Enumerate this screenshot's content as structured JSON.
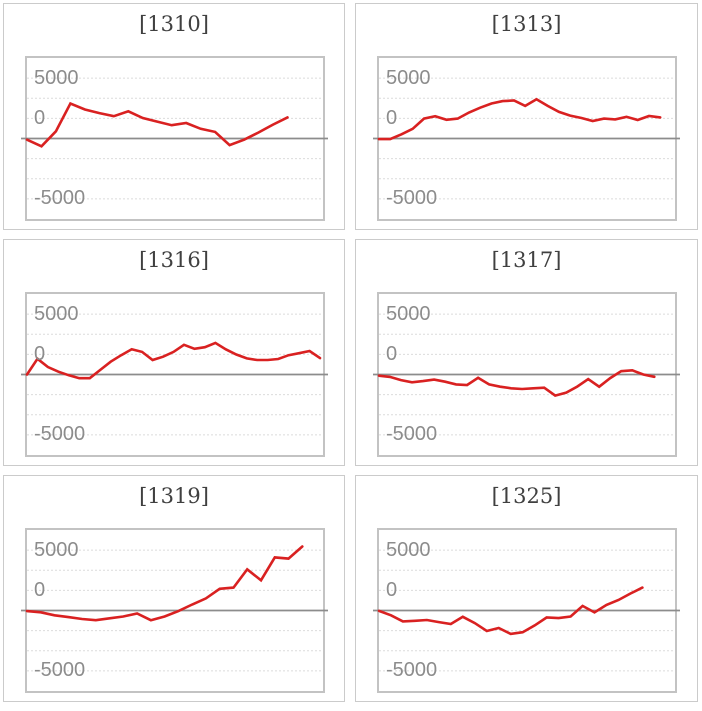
{
  "style": {
    "line_color": "#d92121",
    "grid_color": "#dbdbdb",
    "axis_color": "#8c8c8c",
    "plot_border_color": "#c3c3c3",
    "panel_border_color": "#cbcbcb",
    "title_color": "#404040",
    "tick_label_color": "#8c8c8c",
    "background": "#ffffff"
  },
  "chart_data": [
    {
      "type": "line",
      "title": "[1310]",
      "y_tick_labels": [
        "5000",
        "0",
        "-5000"
      ],
      "y_ticks": [
        5000,
        0,
        -5000
      ],
      "ylim": [
        -6670,
        6670
      ],
      "grid": true,
      "zero_line": true,
      "end_frac": 0.88,
      "values": [
        -100,
        -650,
        600,
        2900,
        2400,
        2100,
        1850,
        2250,
        1700,
        1400,
        1100,
        1280,
        800,
        550,
        -550,
        -100,
        500,
        1150,
        1750
      ]
    },
    {
      "type": "line",
      "title": "[1313]",
      "y_tick_labels": [
        "5000",
        "0",
        "-5000"
      ],
      "y_ticks": [
        5000,
        0,
        -5000
      ],
      "ylim": [
        -6670,
        6670
      ],
      "grid": true,
      "zero_line": true,
      "end_frac": 0.95,
      "values": [
        -50,
        -50,
        350,
        800,
        1650,
        1850,
        1550,
        1650,
        2150,
        2550,
        2900,
        3100,
        3150,
        2700,
        3250,
        2700,
        2200,
        1900,
        1700,
        1450,
        1650,
        1580,
        1800,
        1530,
        1860,
        1750
      ]
    },
    {
      "type": "line",
      "title": "[1316]",
      "y_tick_labels": [
        "5000",
        "0",
        "-5000"
      ],
      "y_ticks": [
        5000,
        0,
        -5000
      ],
      "ylim": [
        -6670,
        6670
      ],
      "grid": true,
      "zero_line": true,
      "end_frac": 0.99,
      "values": [
        0,
        1300,
        620,
        230,
        -70,
        -310,
        -310,
        380,
        1060,
        1600,
        2090,
        1870,
        1200,
        1470,
        1870,
        2460,
        2130,
        2260,
        2620,
        2090,
        1660,
        1330,
        1200,
        1200,
        1280,
        1600,
        1760,
        1950,
        1360
      ]
    },
    {
      "type": "line",
      "title": "[1317]",
      "y_tick_labels": [
        "5000",
        "0",
        "-5000"
      ],
      "y_ticks": [
        5000,
        0,
        -5000
      ],
      "ylim": [
        -6670,
        6670
      ],
      "grid": true,
      "zero_line": true,
      "end_frac": 0.93,
      "values": [
        -100,
        -200,
        -460,
        -650,
        -550,
        -420,
        -600,
        -820,
        -870,
        -270,
        -820,
        -1010,
        -1140,
        -1200,
        -1140,
        -1090,
        -1750,
        -1500,
        -1000,
        -380,
        -1010,
        -300,
        270,
        350,
        0,
        -190
      ]
    },
    {
      "type": "line",
      "title": "[1319]",
      "y_tick_labels": [
        "5000",
        "0",
        "-5000"
      ],
      "y_ticks": [
        5000,
        0,
        -5000
      ],
      "ylim": [
        -6670,
        6670
      ],
      "grid": true,
      "zero_line": true,
      "end_frac": 0.93,
      "values": [
        -50,
        -150,
        -400,
        -550,
        -700,
        -800,
        -650,
        -500,
        -250,
        -800,
        -500,
        -50,
        500,
        1000,
        1800,
        1900,
        3400,
        2500,
        4400,
        4300,
        5300
      ]
    },
    {
      "type": "line",
      "title": "[1325]",
      "y_tick_labels": [
        "5000",
        "0",
        "-5000"
      ],
      "y_ticks": [
        5000,
        0,
        -5000
      ],
      "ylim": [
        -6670,
        6670
      ],
      "grid": true,
      "zero_line": true,
      "end_frac": 0.89,
      "values": [
        -30,
        -400,
        -900,
        -850,
        -790,
        -960,
        -1120,
        -520,
        -1040,
        -1700,
        -1450,
        -1940,
        -1800,
        -1230,
        -580,
        -630,
        -500,
        380,
        -160,
        460,
        870,
        1410,
        1900
      ]
    }
  ]
}
